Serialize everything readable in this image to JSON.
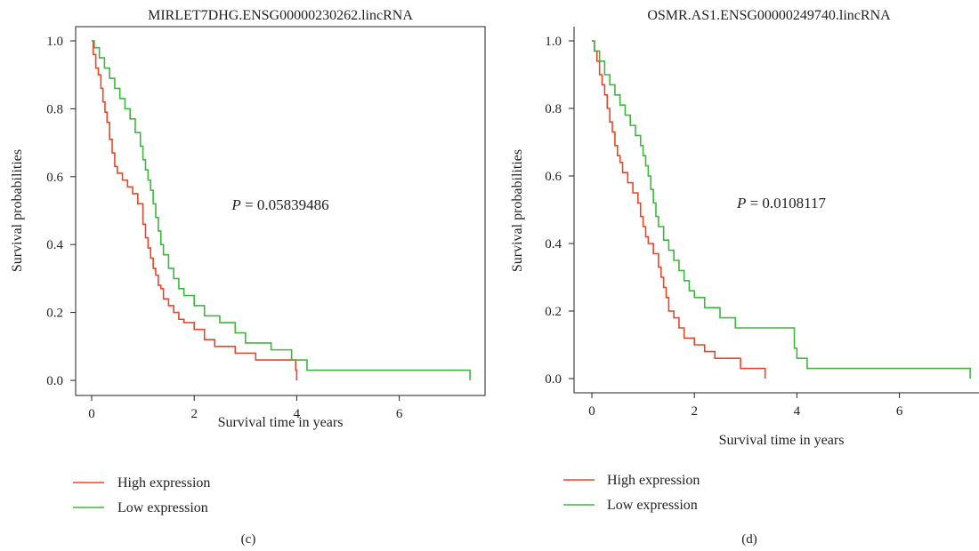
{
  "panels": [
    {
      "panel_label": "(c)",
      "legend": [
        "High expression",
        "Low expression"
      ]
    },
    {
      "panel_label": "(d)",
      "legend": [
        "High expression",
        "Low expression"
      ]
    }
  ],
  "colors": {
    "high": "#e8462a",
    "low": "#3db83d",
    "axis": "#222222"
  },
  "chart_data": [
    {
      "type": "line",
      "step": true,
      "title": "MIRLET7DHG.ENSG00000230262.lincRNA",
      "xlabel": "Survival time in years",
      "ylabel": "Survival probabilities",
      "xlim": [
        -0.3,
        7.5
      ],
      "ylim": [
        -0.03,
        1.05
      ],
      "xticks": [
        0,
        2,
        4,
        6
      ],
      "yticks": [
        0.0,
        0.2,
        0.4,
        0.6,
        0.8,
        1.0
      ],
      "ytick_labels": [
        "0.0",
        "0.2",
        "0.4",
        "0.6",
        "0.8",
        "1.0"
      ],
      "annotation": {
        "italic": "P",
        "text": " = 0.05839486"
      },
      "legend_position": "bottom-left",
      "series": [
        {
          "name": "High expression",
          "color_key": "high",
          "x": [
            0,
            0.03,
            0.08,
            0.13,
            0.18,
            0.22,
            0.26,
            0.3,
            0.35,
            0.4,
            0.45,
            0.5,
            0.6,
            0.7,
            0.8,
            0.9,
            1.0,
            1.05,
            1.1,
            1.15,
            1.2,
            1.25,
            1.3,
            1.35,
            1.4,
            1.5,
            1.6,
            1.7,
            1.8,
            2.0,
            2.2,
            2.4,
            2.8,
            3.2,
            3.98,
            4.0
          ],
          "y": [
            1.0,
            0.96,
            0.92,
            0.9,
            0.86,
            0.82,
            0.79,
            0.76,
            0.71,
            0.67,
            0.63,
            0.61,
            0.59,
            0.57,
            0.55,
            0.52,
            0.46,
            0.42,
            0.39,
            0.36,
            0.33,
            0.31,
            0.28,
            0.27,
            0.24,
            0.22,
            0.2,
            0.18,
            0.17,
            0.15,
            0.12,
            0.1,
            0.08,
            0.06,
            0.03,
            0.0
          ]
        },
        {
          "name": "Low expression",
          "color_key": "low",
          "x": [
            0,
            0.05,
            0.15,
            0.25,
            0.35,
            0.45,
            0.55,
            0.65,
            0.75,
            0.85,
            0.95,
            1.0,
            1.05,
            1.1,
            1.15,
            1.2,
            1.25,
            1.3,
            1.35,
            1.4,
            1.5,
            1.6,
            1.7,
            1.8,
            2.0,
            2.2,
            2.5,
            2.8,
            3.0,
            3.5,
            3.9,
            4.2,
            7.38
          ],
          "y": [
            1.0,
            0.98,
            0.95,
            0.92,
            0.89,
            0.86,
            0.83,
            0.8,
            0.77,
            0.73,
            0.69,
            0.65,
            0.62,
            0.59,
            0.56,
            0.52,
            0.48,
            0.44,
            0.4,
            0.37,
            0.33,
            0.3,
            0.27,
            0.25,
            0.22,
            0.19,
            0.17,
            0.14,
            0.11,
            0.09,
            0.06,
            0.03,
            0.0
          ]
        }
      ]
    },
    {
      "type": "line",
      "step": true,
      "title": "OSMR.AS1.ENSG00000249740.lincRNA",
      "xlabel": "Survival time in years",
      "ylabel": "Survival probabilities",
      "xlim": [
        -0.3,
        7.5
      ],
      "ylim": [
        -0.03,
        1.05
      ],
      "xticks": [
        0,
        2,
        4,
        6
      ],
      "yticks": [
        0.0,
        0.2,
        0.4,
        0.6,
        0.8,
        1.0
      ],
      "ytick_labels": [
        "0.0",
        "0.2",
        "0.4",
        "0.6",
        "0.8",
        "1.0"
      ],
      "annotation": {
        "italic": "P",
        "text": " = 0.0108117"
      },
      "legend_position": "bottom-left",
      "series": [
        {
          "name": "High expression",
          "color_key": "high",
          "x": [
            0,
            0.05,
            0.1,
            0.15,
            0.2,
            0.25,
            0.3,
            0.35,
            0.4,
            0.45,
            0.5,
            0.55,
            0.6,
            0.7,
            0.8,
            0.9,
            0.95,
            1.0,
            1.05,
            1.1,
            1.2,
            1.3,
            1.35,
            1.4,
            1.45,
            1.5,
            1.6,
            1.7,
            1.8,
            2.0,
            2.2,
            2.4,
            2.9,
            3.38
          ],
          "y": [
            1.0,
            0.97,
            0.94,
            0.9,
            0.87,
            0.84,
            0.8,
            0.76,
            0.73,
            0.69,
            0.66,
            0.64,
            0.61,
            0.58,
            0.55,
            0.52,
            0.48,
            0.45,
            0.42,
            0.4,
            0.37,
            0.33,
            0.3,
            0.27,
            0.24,
            0.2,
            0.18,
            0.15,
            0.12,
            0.1,
            0.08,
            0.06,
            0.03,
            0.0
          ]
        },
        {
          "name": "Low expression",
          "color_key": "low",
          "x": [
            0,
            0.05,
            0.15,
            0.25,
            0.35,
            0.45,
            0.55,
            0.65,
            0.75,
            0.85,
            0.95,
            1.0,
            1.05,
            1.1,
            1.15,
            1.2,
            1.25,
            1.3,
            1.4,
            1.5,
            1.6,
            1.7,
            1.8,
            1.9,
            2.0,
            2.2,
            2.5,
            2.8,
            3.95,
            4.0,
            4.2,
            7.38
          ],
          "y": [
            1.0,
            0.97,
            0.94,
            0.9,
            0.87,
            0.84,
            0.81,
            0.78,
            0.75,
            0.72,
            0.69,
            0.66,
            0.63,
            0.6,
            0.56,
            0.52,
            0.48,
            0.45,
            0.41,
            0.38,
            0.35,
            0.32,
            0.29,
            0.26,
            0.24,
            0.21,
            0.18,
            0.15,
            0.09,
            0.06,
            0.03,
            0.0
          ]
        }
      ]
    }
  ]
}
